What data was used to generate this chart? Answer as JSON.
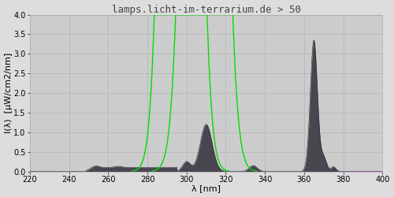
{
  "title": "lamps.licht-im-terrarium.de > 50",
  "xlabel": "λ [nm]",
  "ylabel": "I(λ)  [μW/cm2/nm]",
  "xlim": [
    220,
    400
  ],
  "ylim": [
    0.0,
    4.0
  ],
  "yticks": [
    0.0,
    0.5,
    1.0,
    1.5,
    2.0,
    2.5,
    3.0,
    3.5,
    4.0
  ],
  "xticks": [
    220,
    240,
    260,
    280,
    300,
    320,
    340,
    360,
    380,
    400
  ],
  "bg_color": "#dddddd",
  "plot_bg_color": "#cccccc",
  "grid_color": "#bbbbbb",
  "spectrum_color_dark": "#4a4650",
  "spectrum_color_light": "#888088",
  "purple_color": "#880099",
  "green_line_color": "#00dd00",
  "title_color": "#444444",
  "title_fontsize": 9,
  "axis_label_fontsize": 8,
  "tick_fontsize": 7,
  "figsize": [
    5.0,
    2.5
  ],
  "dpi": 100
}
